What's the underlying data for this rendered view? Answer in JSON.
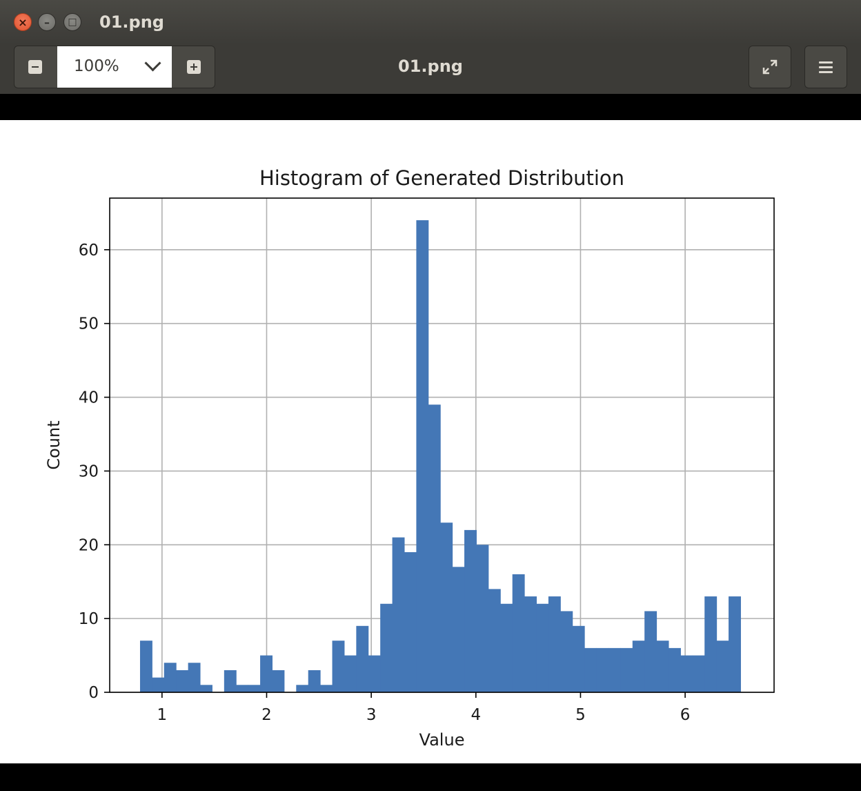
{
  "window": {
    "title": "01.png"
  },
  "toolbar": {
    "zoom_value": "100%",
    "center_title": "01.png",
    "icons": {
      "zoom_out": "zoom-out-icon",
      "zoom_in": "zoom-in-icon",
      "dropdown": "chevron-down-icon",
      "fullscreen": "fullscreen-icon",
      "menu": "hamburger-menu-icon"
    }
  },
  "colors": {
    "titlebar": "#3c3b37",
    "bar_fill": "#4477b6",
    "close": "#e0532f"
  },
  "chart_data": {
    "type": "bar",
    "title": "Histogram of Generated Distribution",
    "xlabel": "Value",
    "ylabel": "Count",
    "xlim": [
      0.5,
      6.85
    ],
    "ylim": [
      0,
      67
    ],
    "xticks": [
      1,
      2,
      3,
      4,
      5,
      6
    ],
    "yticks": [
      0,
      10,
      20,
      30,
      40,
      50,
      60
    ],
    "grid": true,
    "bin_start": 0.79,
    "bin_width": 0.1148,
    "counts": [
      7,
      2,
      4,
      3,
      4,
      1,
      0,
      3,
      1,
      1,
      5,
      3,
      0,
      1,
      3,
      1,
      7,
      5,
      9,
      5,
      12,
      21,
      19,
      64,
      39,
      23,
      17,
      22,
      20,
      14,
      12,
      16,
      13,
      12,
      13,
      11,
      9,
      6,
      6,
      6,
      6,
      7,
      11,
      7,
      6,
      5,
      5,
      13,
      7,
      13
    ]
  }
}
